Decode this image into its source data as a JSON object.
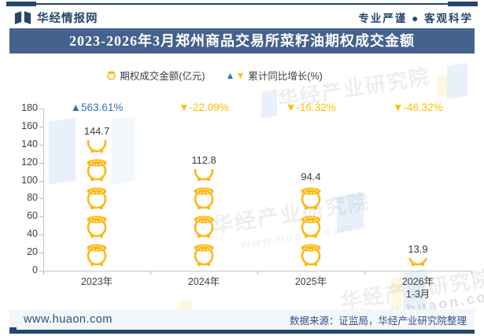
{
  "header": {
    "brand": "华经情报网",
    "slogan": "专业严谨 ● 客观科学"
  },
  "title": "2023-2026年3月郑州商品交易所菜籽油期权成交金额",
  "legend": {
    "items": [
      {
        "label": "期权成交金额(亿元)",
        "marker": "pot-icon"
      },
      {
        "label": "累计同比增长(%)",
        "marker": "up-down-triangles"
      }
    ]
  },
  "icons": {
    "up_triangle": "▲",
    "down_triangle": "▼"
  },
  "chart_data": {
    "type": "bar",
    "subtype": "pictograph-stacked-pot-icons",
    "title": "2023-2026年3月郑州商品交易所菜籽油期权成交金额",
    "categories": [
      {
        "label": "2023年"
      },
      {
        "label": "2024年"
      },
      {
        "label": "2025年"
      },
      {
        "label": "2026年",
        "sublabel": "1-3月"
      }
    ],
    "series": [
      {
        "name": "期权成交金额(亿元)",
        "type": "bar",
        "unit": "亿元",
        "values": [
          144.7,
          112.8,
          94.4,
          13.9
        ],
        "display": [
          "144.7",
          "112.8",
          "94.4",
          "13.9"
        ]
      },
      {
        "name": "累计同比增长(%)",
        "type": "point-label",
        "unit": "%",
        "values": [
          563.61,
          -22.09,
          -16.32,
          -46.32
        ],
        "display": [
          "563.61%",
          "-22.09%",
          "-16.32%",
          "-46.32%"
        ]
      }
    ],
    "ylim": [
      0,
      180
    ],
    "yticks": [
      180,
      160,
      140,
      120,
      100,
      80,
      60,
      40,
      20,
      0
    ],
    "grid": false,
    "legend_position": "top",
    "colors": {
      "bar_gold": "#FDB813",
      "up_blue": "#2E75B6",
      "down_gold": "#FFC000"
    }
  },
  "watermark": {
    "name": "华经产业研究院",
    "url": "www.huaon.com"
  },
  "footer": {
    "site": "www.huaon.com",
    "source": "数据来源：证监局，华经产业研究院整理"
  }
}
